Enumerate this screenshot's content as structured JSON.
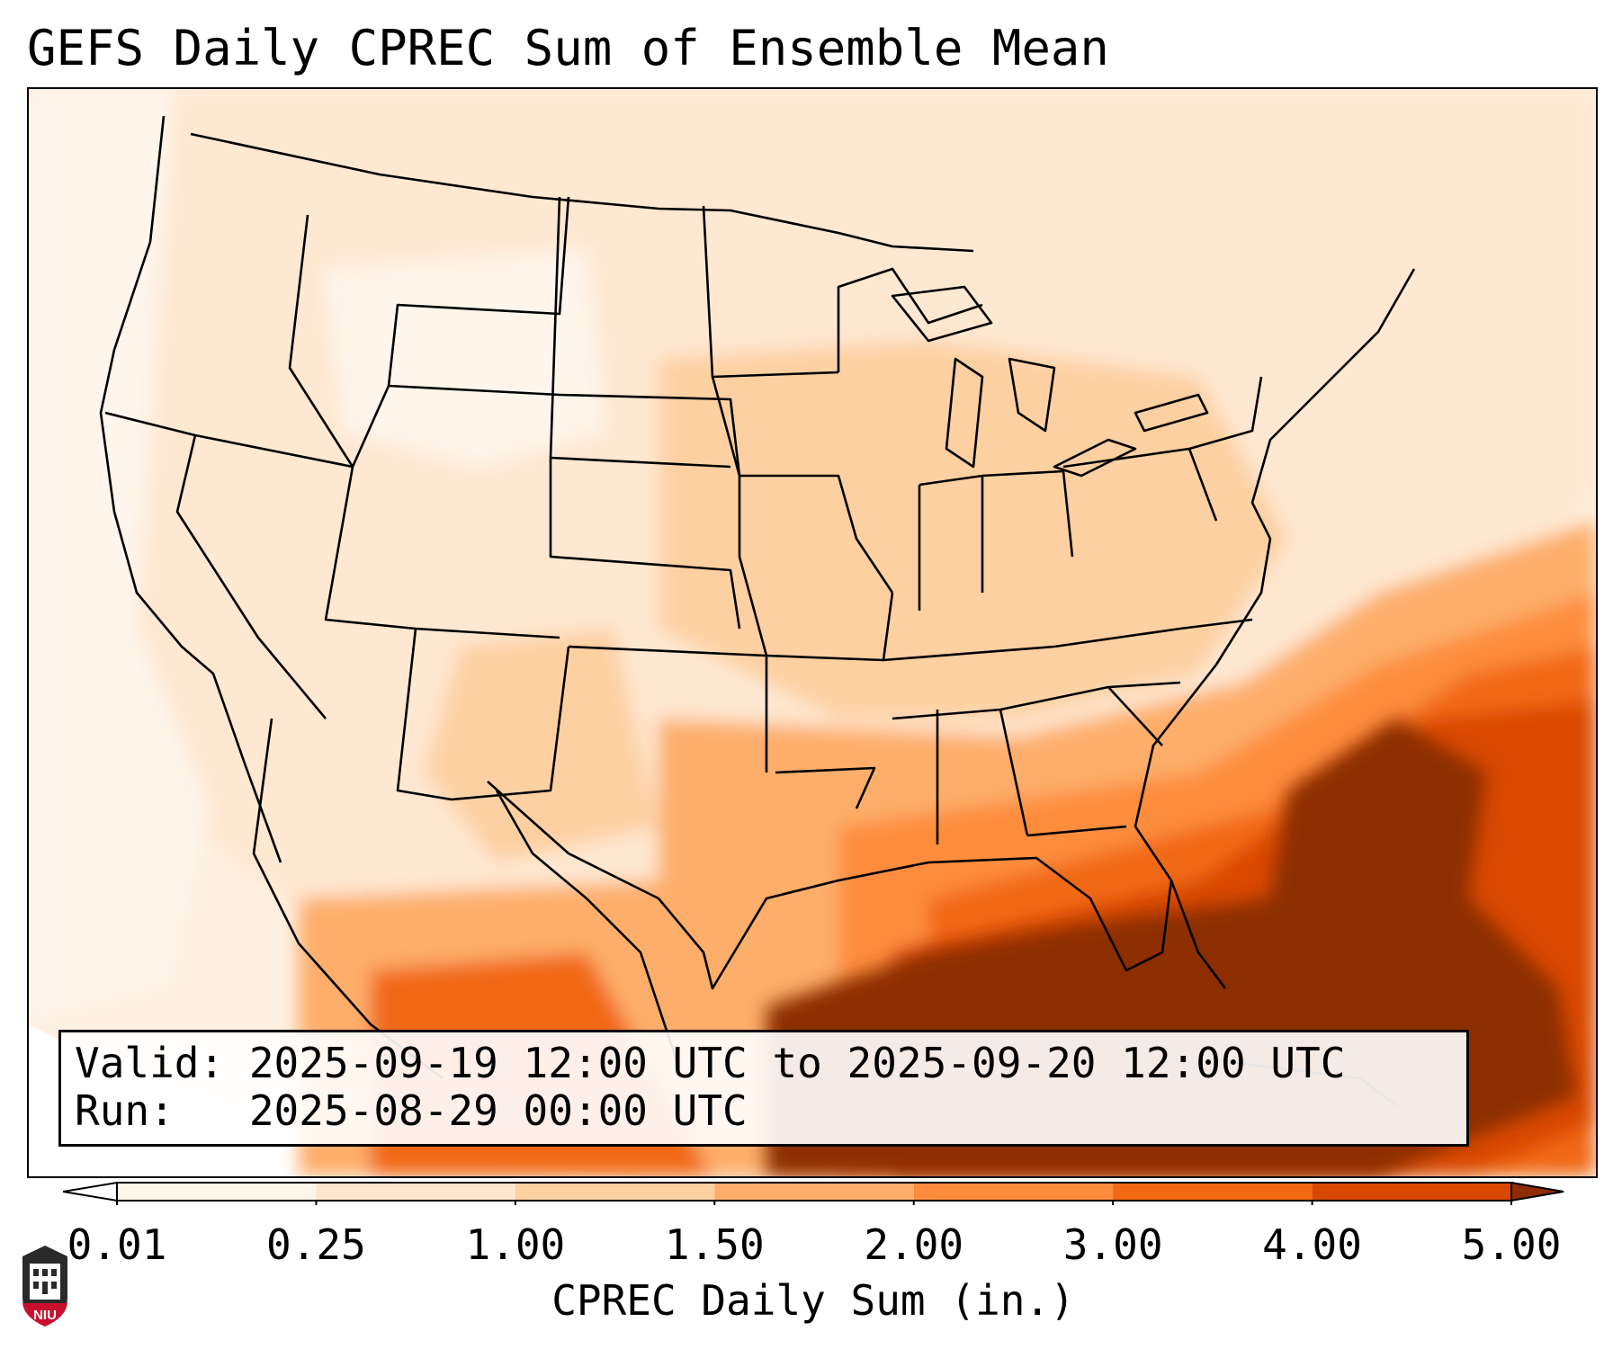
{
  "title": "GEFS Daily CPREC Sum of Ensemble Mean",
  "info": {
    "valid_line": "Valid: 2025-09-19 12:00 UTC to 2025-09-20 12:00 UTC",
    "run_line": "Run:   2025-08-29 00:00 UTC"
  },
  "colorbar": {
    "label": "CPREC Daily Sum (in.)",
    "ticks": [
      "0.01",
      "0.25",
      "1.00",
      "1.50",
      "2.00",
      "3.00",
      "4.00",
      "5.00"
    ],
    "colors": [
      "#fff5eb",
      "#fee6ce",
      "#fdd0a2",
      "#fdae6b",
      "#fd8d3c",
      "#f16913",
      "#d94801",
      "#8c2d04"
    ],
    "extend": "both"
  },
  "logo": {
    "text": "NIU",
    "color": "#c8102e"
  },
  "chart_data": {
    "type": "heatmap",
    "variable": "CPREC Daily Sum (in.)",
    "scale_bounds": [
      0.01,
      0.25,
      1.0,
      1.5,
      2.0,
      3.0,
      4.0,
      5.0
    ],
    "extend": "both"
  }
}
